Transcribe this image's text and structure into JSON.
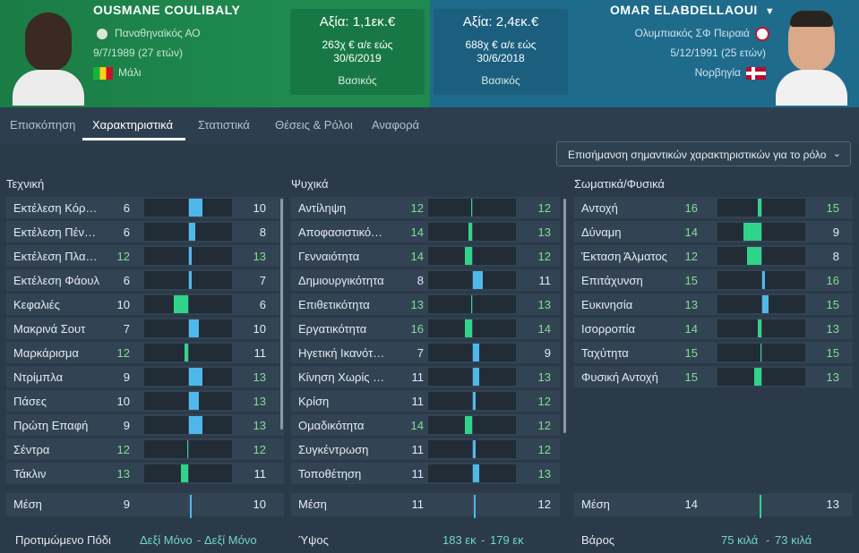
{
  "left_player": {
    "name": "OUSMANE COULIBALY",
    "club": "Παναθηναϊκός ΑΟ",
    "dob": "9/7/1989 (27 ετών)",
    "nationality": "Μάλι",
    "value": "Αξία: 1,1εκ.€",
    "wage": "263χ € α/ε εώς",
    "contract_end": "30/6/2019",
    "status": "Βασικός"
  },
  "right_player": {
    "name": "OMAR ELABDELLAOUI",
    "club": "Ολυμπιακός ΣΦ Πειραιά",
    "dob": "5/12/1991 (25 ετών)",
    "nationality": "Νορβηγία",
    "value": "Αξία: 2,4εκ.€",
    "wage": "688χ € α/ε εώς",
    "contract_end": "30/6/2018",
    "status": "Βασικός"
  },
  "tabs": [
    "Επισκόπηση",
    "Χαρακτηριστικά",
    "Στατιστικά",
    "Θέσεις & Ρόλοι",
    "Αναφορά"
  ],
  "active_tab": "Χαρακτηριστικά",
  "highlight_dropdown": "Επισήμανση σημαντικών χαρακτηριστικών για το ρόλο",
  "colors": {
    "left_accent": "#1e8a4f",
    "right_accent": "#1f6b8c",
    "blue_marker": "#4fb8ea",
    "green_marker": "#2fd48a",
    "good_value": "#7fe08e",
    "footer_value": "#6fd8c7"
  },
  "sections": {
    "technical": {
      "title": "Τεχνική",
      "rows": [
        {
          "name": "Εκτέλεση Κόρνερ",
          "left": 6,
          "right": 10
        },
        {
          "name": "Εκτέλεση Πέναλτι",
          "left": 6,
          "right": 8
        },
        {
          "name": "Εκτέλεση Πλαγίου",
          "left": 12,
          "right": 13
        },
        {
          "name": "Εκτέλεση Φάουλ",
          "left": 6,
          "right": 7
        },
        {
          "name": "Κεφαλιές",
          "left": 10,
          "right": 6
        },
        {
          "name": "Μακρινά Σουτ",
          "left": 7,
          "right": 10
        },
        {
          "name": "Μαρκάρισμα",
          "left": 12,
          "right": 11
        },
        {
          "name": "Ντρίμπλα",
          "left": 9,
          "right": 13
        },
        {
          "name": "Πάσες",
          "left": 10,
          "right": 13
        },
        {
          "name": "Πρώτη Επαφή",
          "left": 9,
          "right": 13
        },
        {
          "name": "Σέντρα",
          "left": 12,
          "right": 12
        },
        {
          "name": "Τάκλιν",
          "left": 13,
          "right": 11
        }
      ],
      "average": {
        "label": "Μέση",
        "left": 9,
        "right": 10
      }
    },
    "mental": {
      "title": "Ψυχικά",
      "rows": [
        {
          "name": "Αντίληψη",
          "left": 12,
          "right": 12
        },
        {
          "name": "Αποφασιστικότητα",
          "left": 14,
          "right": 13
        },
        {
          "name": "Γενναιότητα",
          "left": 14,
          "right": 12
        },
        {
          "name": "Δημιουργικότητα",
          "left": 8,
          "right": 11
        },
        {
          "name": "Επιθετικότητα",
          "left": 13,
          "right": 13
        },
        {
          "name": "Εργατικότητα",
          "left": 16,
          "right": 14
        },
        {
          "name": "Ηγετική Ικανότητα",
          "left": 7,
          "right": 9
        },
        {
          "name": "Κίνηση Χωρίς το Μπαλόνι",
          "left": 11,
          "right": 13
        },
        {
          "name": "Κρίση",
          "left": 11,
          "right": 12
        },
        {
          "name": "Ομαδικότητα",
          "left": 14,
          "right": 12
        },
        {
          "name": "Συγκέντρωση",
          "left": 11,
          "right": 12
        },
        {
          "name": "Τοποθέτηση",
          "left": 11,
          "right": 13
        }
      ],
      "average": {
        "label": "Μέση",
        "left": 11,
        "right": 12
      }
    },
    "physical": {
      "title": "Σωματικά/Φυσικά",
      "rows": [
        {
          "name": "Αντοχή",
          "left": 16,
          "right": 15
        },
        {
          "name": "Δύναμη",
          "left": 14,
          "right": 9
        },
        {
          "name": "Έκταση Άλματος",
          "left": 12,
          "right": 8
        },
        {
          "name": "Επιτάχυνση",
          "left": 15,
          "right": 16
        },
        {
          "name": "Ευκινησία",
          "left": 13,
          "right": 15
        },
        {
          "name": "Ισορροπία",
          "left": 14,
          "right": 13
        },
        {
          "name": "Ταχύτητα",
          "left": 15,
          "right": 15
        },
        {
          "name": "Φυσική Αντοχή",
          "left": 15,
          "right": 13
        }
      ],
      "average": {
        "label": "Μέση",
        "left": 14,
        "right": 13
      }
    }
  },
  "footer": {
    "foot_label": "Προτιμώμενο Πόδι",
    "foot_left": "Δεξί Μόνο",
    "foot_right": "Δεξί Μόνο",
    "height_label": "Ύψος",
    "height_left": "183 εκ",
    "height_right": "179 εκ",
    "weight_label": "Βάρος",
    "weight_left": "75 κιλά",
    "weight_right": "73 κιλά",
    "separator": "-"
  }
}
